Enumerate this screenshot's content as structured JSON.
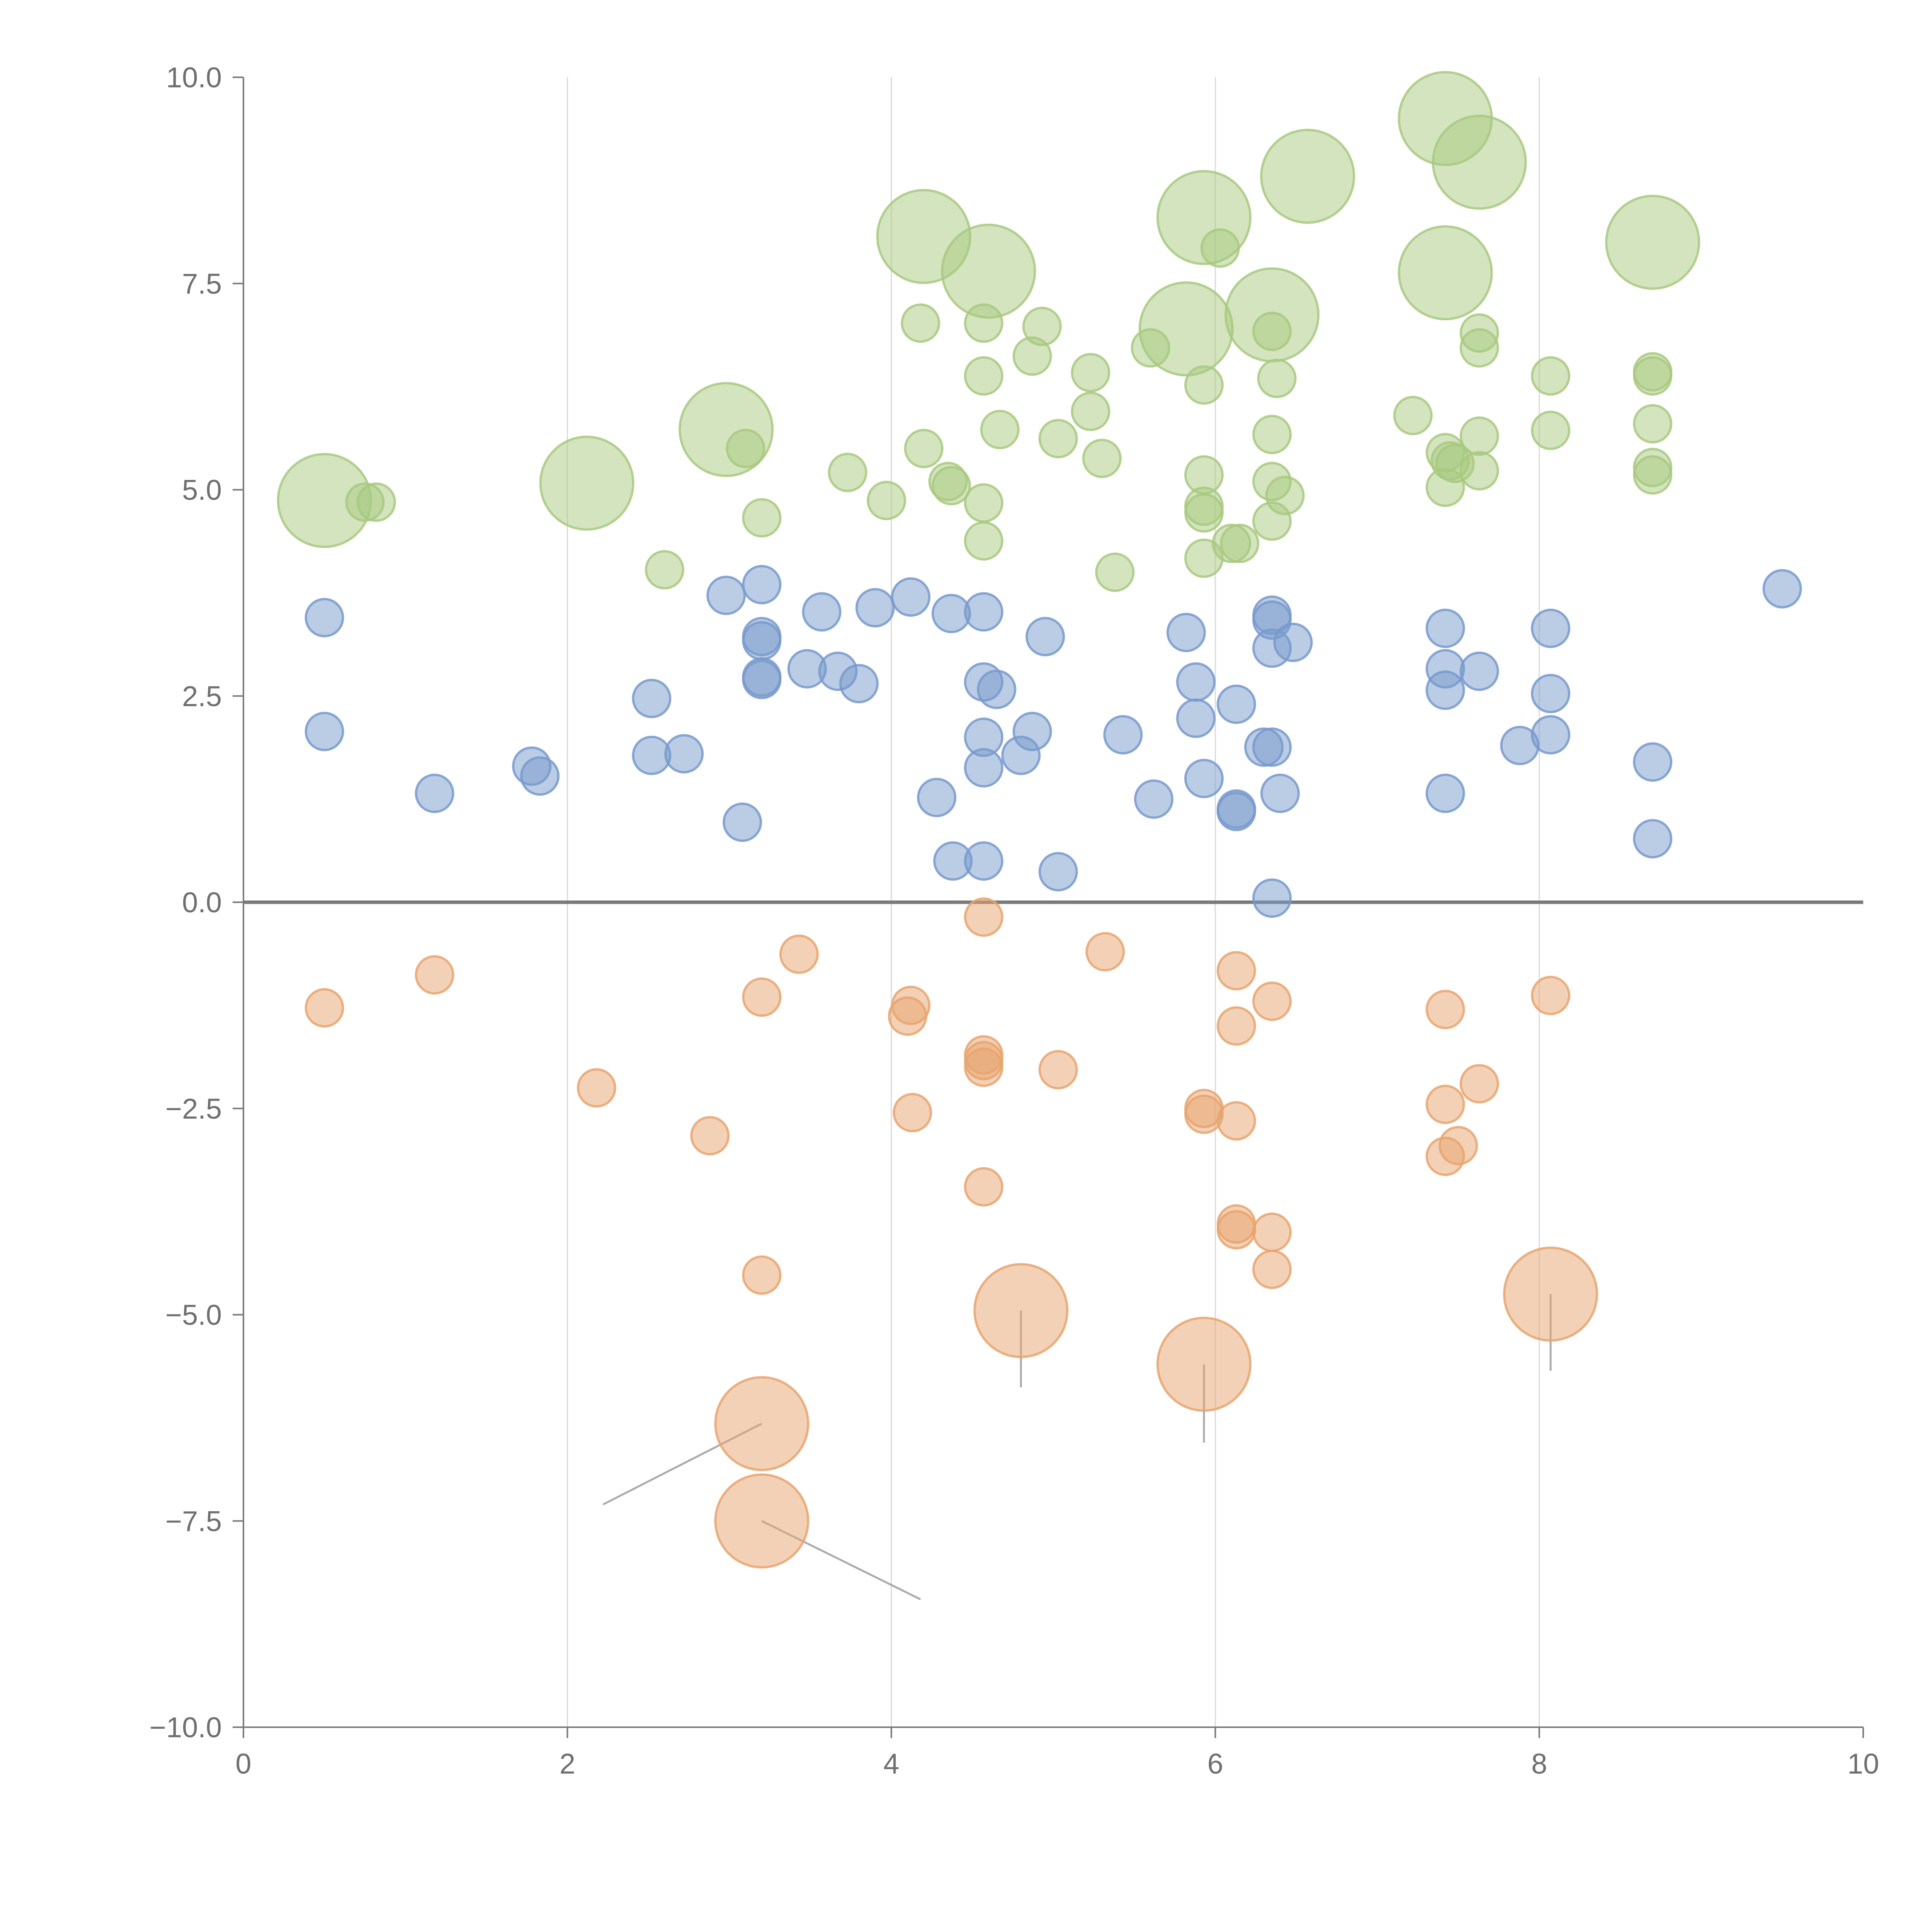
{
  "chart_data": {
    "type": "scatter",
    "title": "",
    "xlabel": "",
    "ylabel": "",
    "xlim": [
      0,
      10
    ],
    "ylim": [
      -10,
      10
    ],
    "x_ticks": [
      "0",
      "2",
      "4",
      "6",
      "8",
      "10"
    ],
    "y_ticks": [
      "10.0",
      "7.5",
      "5.0",
      "2.5",
      "0.0",
      "−2.5",
      "−5.0",
      "−7.5",
      "−10.0"
    ],
    "grid": "vertical",
    "zero_line": true,
    "series": [
      {
        "name": "green",
        "color": "#a8c97f",
        "points": [
          {
            "x": 0.5,
            "y": 4.87,
            "r": 2.5
          },
          {
            "x": 0.75,
            "y": 4.85,
            "r": 1
          },
          {
            "x": 0.82,
            "y": 4.85,
            "r": 1
          },
          {
            "x": 2.12,
            "y": 5.08,
            "r": 2.5
          },
          {
            "x": 2.6,
            "y": 4.03,
            "r": 1
          },
          {
            "x": 2.98,
            "y": 5.73,
            "r": 2.5
          },
          {
            "x": 3.1,
            "y": 5.5,
            "r": 1
          },
          {
            "x": 3.2,
            "y": 4.66,
            "r": 1
          },
          {
            "x": 3.73,
            "y": 5.21,
            "r": 1
          },
          {
            "x": 3.97,
            "y": 4.87,
            "r": 1
          },
          {
            "x": 4.18,
            "y": 7.02,
            "r": 1
          },
          {
            "x": 4.2,
            "y": 5.5,
            "r": 1
          },
          {
            "x": 4.2,
            "y": 8.07,
            "r": 2.5
          },
          {
            "x": 4.35,
            "y": 5.1,
            "r": 1
          },
          {
            "x": 4.37,
            "y": 5.05,
            "r": 1
          },
          {
            "x": 4.57,
            "y": 7.02,
            "r": 1
          },
          {
            "x": 4.57,
            "y": 6.38,
            "r": 1
          },
          {
            "x": 4.57,
            "y": 4.84,
            "r": 1
          },
          {
            "x": 4.57,
            "y": 4.38,
            "r": 1
          },
          {
            "x": 4.6,
            "y": 7.65,
            "r": 2.5
          },
          {
            "x": 4.67,
            "y": 5.73,
            "r": 1
          },
          {
            "x": 4.87,
            "y": 6.62,
            "r": 1
          },
          {
            "x": 4.93,
            "y": 6.98,
            "r": 1
          },
          {
            "x": 5.03,
            "y": 5.62,
            "r": 1
          },
          {
            "x": 5.23,
            "y": 6.42,
            "r": 1
          },
          {
            "x": 5.23,
            "y": 5.95,
            "r": 1
          },
          {
            "x": 5.3,
            "y": 5.38,
            "r": 1
          },
          {
            "x": 5.38,
            "y": 4.0,
            "r": 1
          },
          {
            "x": 5.6,
            "y": 6.72,
            "r": 1
          },
          {
            "x": 5.82,
            "y": 6.95,
            "r": 2.5
          },
          {
            "x": 5.93,
            "y": 8.3,
            "r": 2.5
          },
          {
            "x": 5.93,
            "y": 6.27,
            "r": 1
          },
          {
            "x": 5.93,
            "y": 5.18,
            "r": 1
          },
          {
            "x": 5.93,
            "y": 4.8,
            "r": 1
          },
          {
            "x": 5.93,
            "y": 4.72,
            "r": 1
          },
          {
            "x": 5.93,
            "y": 4.17,
            "r": 1
          },
          {
            "x": 6.03,
            "y": 7.93,
            "r": 1
          },
          {
            "x": 6.1,
            "y": 4.35,
            "r": 1
          },
          {
            "x": 6.15,
            "y": 4.35,
            "r": 1
          },
          {
            "x": 6.35,
            "y": 7.12,
            "r": 2.5
          },
          {
            "x": 6.35,
            "y": 6.92,
            "r": 1
          },
          {
            "x": 6.35,
            "y": 5.67,
            "r": 1
          },
          {
            "x": 6.35,
            "y": 5.1,
            "r": 1
          },
          {
            "x": 6.35,
            "y": 4.62,
            "r": 1
          },
          {
            "x": 6.38,
            "y": 6.35,
            "r": 1
          },
          {
            "x": 6.43,
            "y": 4.93,
            "r": 1
          },
          {
            "x": 6.57,
            "y": 8.8,
            "r": 2.5
          },
          {
            "x": 7.22,
            "y": 5.9,
            "r": 1
          },
          {
            "x": 7.42,
            "y": 9.5,
            "r": 2.5
          },
          {
            "x": 7.42,
            "y": 7.63,
            "r": 2.5
          },
          {
            "x": 7.42,
            "y": 5.45,
            "r": 1
          },
          {
            "x": 7.42,
            "y": 5.03,
            "r": 1
          },
          {
            "x": 7.45,
            "y": 5.35,
            "r": 1
          },
          {
            "x": 7.48,
            "y": 5.32,
            "r": 1
          },
          {
            "x": 7.63,
            "y": 8.97,
            "r": 2.5
          },
          {
            "x": 7.63,
            "y": 6.9,
            "r": 1
          },
          {
            "x": 7.63,
            "y": 6.72,
            "r": 1
          },
          {
            "x": 7.63,
            "y": 5.65,
            "r": 1
          },
          {
            "x": 7.63,
            "y": 5.23,
            "r": 1
          },
          {
            "x": 8.07,
            "y": 6.38,
            "r": 1
          },
          {
            "x": 8.07,
            "y": 5.72,
            "r": 1
          },
          {
            "x": 8.7,
            "y": 8.0,
            "r": 2.5
          },
          {
            "x": 8.7,
            "y": 6.43,
            "r": 1
          },
          {
            "x": 8.7,
            "y": 6.38,
            "r": 1
          },
          {
            "x": 8.7,
            "y": 5.8,
            "r": 1
          },
          {
            "x": 8.7,
            "y": 5.27,
            "r": 1
          },
          {
            "x": 8.7,
            "y": 5.18,
            "r": 1
          }
        ]
      },
      {
        "name": "blue",
        "color": "#7799cc",
        "points": [
          {
            "x": 0.5,
            "y": 3.45,
            "r": 1
          },
          {
            "x": 0.5,
            "y": 2.07,
            "r": 1
          },
          {
            "x": 1.18,
            "y": 1.32,
            "r": 1
          },
          {
            "x": 1.78,
            "y": 1.65,
            "r": 1
          },
          {
            "x": 1.83,
            "y": 1.53,
            "r": 1
          },
          {
            "x": 2.52,
            "y": 2.47,
            "r": 1
          },
          {
            "x": 2.52,
            "y": 1.78,
            "r": 1
          },
          {
            "x": 2.72,
            "y": 1.8,
            "r": 1
          },
          {
            "x": 2.98,
            "y": 3.72,
            "r": 1
          },
          {
            "x": 3.08,
            "y": 0.97,
            "r": 1
          },
          {
            "x": 3.2,
            "y": 3.85,
            "r": 1
          },
          {
            "x": 3.2,
            "y": 3.22,
            "r": 1
          },
          {
            "x": 3.2,
            "y": 3.17,
            "r": 1
          },
          {
            "x": 3.2,
            "y": 2.73,
            "r": 1
          },
          {
            "x": 3.2,
            "y": 2.7,
            "r": 1
          },
          {
            "x": 3.48,
            "y": 2.83,
            "r": 1
          },
          {
            "x": 3.57,
            "y": 3.52,
            "r": 1
          },
          {
            "x": 3.67,
            "y": 2.8,
            "r": 1
          },
          {
            "x": 3.8,
            "y": 2.65,
            "r": 1
          },
          {
            "x": 3.9,
            "y": 3.57,
            "r": 1
          },
          {
            "x": 4.12,
            "y": 3.7,
            "r": 1
          },
          {
            "x": 4.28,
            "y": 1.27,
            "r": 1
          },
          {
            "x": 4.37,
            "y": 3.5,
            "r": 1
          },
          {
            "x": 4.38,
            "y": 0.5,
            "r": 1
          },
          {
            "x": 4.57,
            "y": 3.52,
            "r": 1
          },
          {
            "x": 4.57,
            "y": 2.67,
            "r": 1
          },
          {
            "x": 4.57,
            "y": 2.0,
            "r": 1
          },
          {
            "x": 4.57,
            "y": 1.63,
            "r": 1
          },
          {
            "x": 4.57,
            "y": 0.5,
            "r": 1
          },
          {
            "x": 4.65,
            "y": 2.58,
            "r": 1
          },
          {
            "x": 4.8,
            "y": 1.78,
            "r": 1
          },
          {
            "x": 4.87,
            "y": 2.07,
            "r": 1
          },
          {
            "x": 4.95,
            "y": 3.22,
            "r": 1
          },
          {
            "x": 5.03,
            "y": 0.37,
            "r": 1
          },
          {
            "x": 5.43,
            "y": 2.03,
            "r": 1
          },
          {
            "x": 5.62,
            "y": 1.25,
            "r": 1
          },
          {
            "x": 5.82,
            "y": 3.27,
            "r": 1
          },
          {
            "x": 5.88,
            "y": 2.67,
            "r": 1
          },
          {
            "x": 5.88,
            "y": 2.23,
            "r": 1
          },
          {
            "x": 5.93,
            "y": 1.5,
            "r": 1
          },
          {
            "x": 6.13,
            "y": 2.4,
            "r": 1
          },
          {
            "x": 6.13,
            "y": 1.13,
            "r": 1
          },
          {
            "x": 6.13,
            "y": 1.1,
            "r": 1
          },
          {
            "x": 6.3,
            "y": 1.88,
            "r": 1
          },
          {
            "x": 6.35,
            "y": 3.48,
            "r": 1
          },
          {
            "x": 6.35,
            "y": 3.42,
            "r": 1
          },
          {
            "x": 6.35,
            "y": 3.08,
            "r": 1
          },
          {
            "x": 6.35,
            "y": 1.88,
            "r": 1
          },
          {
            "x": 6.35,
            "y": 0.05,
            "r": 1
          },
          {
            "x": 6.4,
            "y": 1.32,
            "r": 1
          },
          {
            "x": 6.48,
            "y": 3.15,
            "r": 1
          },
          {
            "x": 7.42,
            "y": 3.32,
            "r": 1
          },
          {
            "x": 7.42,
            "y": 2.83,
            "r": 1
          },
          {
            "x": 7.42,
            "y": 2.57,
            "r": 1
          },
          {
            "x": 7.42,
            "y": 1.32,
            "r": 1
          },
          {
            "x": 7.63,
            "y": 2.8,
            "r": 1
          },
          {
            "x": 7.88,
            "y": 1.9,
            "r": 1
          },
          {
            "x": 8.07,
            "y": 3.32,
            "r": 1
          },
          {
            "x": 8.07,
            "y": 2.53,
            "r": 1
          },
          {
            "x": 8.07,
            "y": 2.03,
            "r": 1
          },
          {
            "x": 8.7,
            "y": 1.7,
            "r": 1
          },
          {
            "x": 8.7,
            "y": 0.77,
            "r": 1
          },
          {
            "x": 9.5,
            "y": 3.8,
            "r": 1
          }
        ]
      },
      {
        "name": "orange",
        "color": "#e8a46e",
        "points": [
          {
            "x": 0.5,
            "y": -1.28,
            "r": 1
          },
          {
            "x": 1.18,
            "y": -0.88,
            "r": 1
          },
          {
            "x": 2.18,
            "y": -2.25,
            "r": 1
          },
          {
            "x": 2.88,
            "y": -2.83,
            "r": 1
          },
          {
            "x": 3.2,
            "y": -1.15,
            "r": 1
          },
          {
            "x": 3.2,
            "y": -4.52,
            "r": 1
          },
          {
            "x": 3.2,
            "y": -6.32,
            "r": 2.5
          },
          {
            "x": 3.2,
            "y": -7.5,
            "r": 2.5
          },
          {
            "x": 3.43,
            "y": -0.63,
            "r": 1
          },
          {
            "x": 4.1,
            "y": -1.38,
            "r": 1
          },
          {
            "x": 4.12,
            "y": -1.25,
            "r": 1
          },
          {
            "x": 4.13,
            "y": -2.55,
            "r": 1
          },
          {
            "x": 4.57,
            "y": -0.18,
            "r": 1
          },
          {
            "x": 4.57,
            "y": -1.85,
            "r": 1
          },
          {
            "x": 4.57,
            "y": -1.92,
            "r": 1
          },
          {
            "x": 4.57,
            "y": -2.0,
            "r": 1
          },
          {
            "x": 4.57,
            "y": -3.45,
            "r": 1
          },
          {
            "x": 4.8,
            "y": -4.95,
            "r": 2.5
          },
          {
            "x": 5.03,
            "y": -2.03,
            "r": 1
          },
          {
            "x": 5.32,
            "y": -0.6,
            "r": 1
          },
          {
            "x": 5.93,
            "y": -2.5,
            "r": 1
          },
          {
            "x": 5.93,
            "y": -2.57,
            "r": 1
          },
          {
            "x": 5.93,
            "y": -5.6,
            "r": 2.5
          },
          {
            "x": 6.13,
            "y": -0.83,
            "r": 1
          },
          {
            "x": 6.13,
            "y": -1.5,
            "r": 1
          },
          {
            "x": 6.13,
            "y": -2.65,
            "r": 1
          },
          {
            "x": 6.13,
            "y": -3.9,
            "r": 1
          },
          {
            "x": 6.13,
            "y": -3.97,
            "r": 1
          },
          {
            "x": 6.35,
            "y": -1.2,
            "r": 1
          },
          {
            "x": 6.35,
            "y": -4.0,
            "r": 1
          },
          {
            "x": 6.35,
            "y": -4.45,
            "r": 1
          },
          {
            "x": 7.42,
            "y": -1.3,
            "r": 1
          },
          {
            "x": 7.42,
            "y": -2.45,
            "r": 1
          },
          {
            "x": 7.42,
            "y": -3.08,
            "r": 1
          },
          {
            "x": 7.5,
            "y": -2.95,
            "r": 1
          },
          {
            "x": 7.63,
            "y": -2.2,
            "r": 1
          },
          {
            "x": 8.07,
            "y": -1.13,
            "r": 1
          },
          {
            "x": 8.07,
            "y": -4.75,
            "r": 2.5
          }
        ]
      }
    ],
    "leader_lines": [
      {
        "x1": 3.2,
        "y1": -6.32,
        "x2": 2.22,
        "y2": -7.3
      },
      {
        "x1": 3.2,
        "y1": -7.5,
        "x2": 4.18,
        "y2": -8.45
      },
      {
        "x1": 4.8,
        "y1": -4.95,
        "x2": 4.8,
        "y2": -5.88
      },
      {
        "x1": 5.93,
        "y1": -5.6,
        "x2": 5.93,
        "y2": -6.55
      },
      {
        "x1": 8.07,
        "y1": -4.75,
        "x2": 8.07,
        "y2": -5.68
      }
    ]
  }
}
